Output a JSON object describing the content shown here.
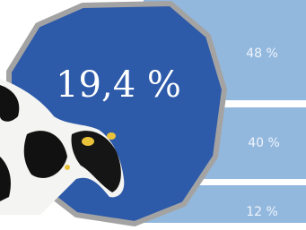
{
  "headline": "19,4 %",
  "segments": [
    {
      "label": "48 %"
    },
    {
      "label": "40 %"
    },
    {
      "label": "12 %"
    }
  ]
}
